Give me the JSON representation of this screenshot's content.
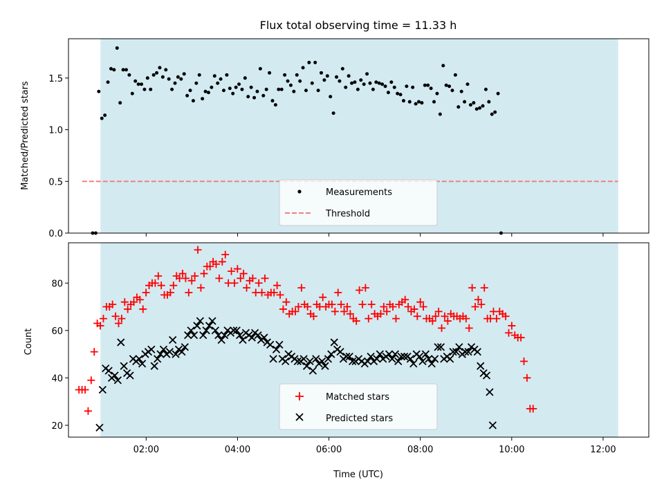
{
  "title": "Flux total observing time = 11.33 h",
  "colors": {
    "shade": "#d3eaf1",
    "measurement": "#000000",
    "threshold": "#f08080",
    "matched": "#ff0000",
    "predicted": "#000000"
  },
  "chart_data": [
    {
      "type": "scatter",
      "id": "ratio",
      "ylabel": "Matched/Predicted stars",
      "xlim": [
        0.3,
        13.0
      ],
      "ylim": [
        0.0,
        1.88
      ],
      "yticks": [
        0.0,
        0.5,
        1.0,
        1.5
      ],
      "ytick_labels": [
        "0.0",
        "0.5",
        "1.0",
        "1.5"
      ],
      "shaded_span": [
        1.0,
        12.33
      ],
      "threshold": 0.5,
      "threshold_span": [
        0.6,
        12.33
      ],
      "legend": {
        "placement": "lower-center",
        "entries": [
          "Measurements",
          "Threshold"
        ]
      },
      "x_start": 0.83,
      "x_step": 0.0667,
      "y": [
        0,
        0,
        1.37,
        1.11,
        1.14,
        1.46,
        1.59,
        1.58,
        1.79,
        1.26,
        1.58,
        1.58,
        1.53,
        1.35,
        1.47,
        1.44,
        1.44,
        1.39,
        1.5,
        1.39,
        1.53,
        1.55,
        1.6,
        1.51,
        1.58,
        1.49,
        1.39,
        1.45,
        1.51,
        1.49,
        1.54,
        1.33,
        1.38,
        1.28,
        1.45,
        1.53,
        1.3,
        1.37,
        1.36,
        1.41,
        1.52,
        1.45,
        1.49,
        1.38,
        1.53,
        1.4,
        1.35,
        1.41,
        1.44,
        1.39,
        1.5,
        1.32,
        1.41,
        1.31,
        1.37,
        1.59,
        1.33,
        1.39,
        1.55,
        1.28,
        1.24,
        1.39,
        1.39,
        1.53,
        1.47,
        1.43,
        1.37,
        1.53,
        1.47,
        1.6,
        1.38,
        1.65,
        1.45,
        1.65,
        1.38,
        1.55,
        1.48,
        1.52,
        1.32,
        1.16,
        1.51,
        1.47,
        1.59,
        1.41,
        1.52,
        1.45,
        1.46,
        1.39,
        1.48,
        1.44,
        1.54,
        1.45,
        1.39,
        1.46,
        1.45,
        1.44,
        1.42,
        1.36,
        1.46,
        1.41,
        1.35,
        1.34,
        1.28,
        1.42,
        1.27,
        1.41,
        1.25,
        1.27,
        1.26,
        1.43,
        1.43,
        1.4,
        1.27,
        1.35,
        1.15,
        1.62,
        1.43,
        1.42,
        1.38,
        1.53,
        1.22,
        1.37,
        1.27,
        1.44,
        1.24,
        1.26,
        1.2,
        1.21,
        1.23,
        1.39,
        1.27,
        1.15,
        1.17,
        1.35,
        0
      ]
    },
    {
      "type": "scatter",
      "id": "counts",
      "title": "",
      "ylabel": "Count",
      "xlabel": "Time (UTC)",
      "xlim": [
        0.3,
        13.0
      ],
      "ylim": [
        15,
        97
      ],
      "yticks": [
        20,
        40,
        60,
        80
      ],
      "ytick_labels": [
        "20",
        "40",
        "60",
        "80"
      ],
      "xticks": [
        2,
        4,
        6,
        8,
        10,
        12
      ],
      "xtick_labels": [
        "02:00",
        "04:00",
        "06:00",
        "08:00",
        "10:00",
        "12:00"
      ],
      "shaded_span": [
        1.0,
        12.33
      ],
      "legend": {
        "placement": "lower-center",
        "entries": [
          "Matched stars",
          "Predicted stars"
        ]
      },
      "series": [
        {
          "name": "Matched stars",
          "marker": "plus",
          "x_start": 0.53,
          "x_step": 0.0667,
          "y": [
            35,
            35,
            35,
            26,
            39,
            51,
            63,
            62,
            65,
            70,
            70,
            71,
            66,
            63,
            65,
            72,
            69,
            71,
            72,
            74,
            73,
            69,
            76,
            79,
            80,
            80,
            83,
            79,
            75,
            75,
            76,
            79,
            83,
            82,
            84,
            82,
            76,
            81,
            83,
            94,
            78,
            84,
            87,
            87,
            89,
            88,
            82,
            89,
            92,
            80,
            85,
            80,
            86,
            82,
            84,
            78,
            81,
            82,
            76,
            80,
            76,
            82,
            75,
            76,
            76,
            79,
            75,
            69,
            72,
            67,
            68,
            68,
            70,
            78,
            71,
            70,
            67,
            66,
            71,
            70,
            74,
            70,
            71,
            71,
            68,
            76,
            71,
            68,
            70,
            67,
            65,
            64,
            77,
            71,
            78,
            65,
            71,
            67,
            66,
            67,
            70,
            68,
            71,
            70,
            65,
            71,
            72,
            73,
            70,
            68,
            69,
            66,
            72,
            70,
            65,
            65,
            64,
            66,
            68,
            61,
            66,
            64,
            67,
            66,
            66,
            65,
            66,
            65,
            61,
            78,
            70,
            73,
            71,
            78,
            65,
            65,
            68,
            65,
            68,
            67,
            66,
            59,
            62,
            58,
            57,
            57,
            47,
            40,
            27,
            27
          ]
        },
        {
          "name": "Predicted stars",
          "marker": "x",
          "x_start": 0.98,
          "x_step": 0.0667,
          "y": [
            19,
            35,
            44,
            43,
            40,
            41,
            39,
            55,
            45,
            42,
            41,
            48,
            47,
            48,
            46,
            50,
            51,
            52,
            45,
            48,
            50,
            52,
            50,
            51,
            56,
            50,
            52,
            51,
            53,
            58,
            60,
            58,
            62,
            64,
            58,
            60,
            62,
            64,
            60,
            58,
            56,
            58,
            60,
            59,
            60,
            60,
            58,
            56,
            59,
            58,
            57,
            59,
            58,
            56,
            57,
            55,
            54,
            48,
            52,
            54,
            48,
            47,
            50,
            49,
            48,
            47,
            47,
            48,
            45,
            47,
            43,
            48,
            46,
            47,
            45,
            48,
            50,
            55,
            52,
            51,
            48,
            49,
            49,
            47,
            47,
            48,
            47,
            46,
            47,
            49,
            47,
            48,
            50,
            48,
            49,
            50,
            48,
            50,
            47,
            49,
            49,
            49,
            48,
            46,
            50,
            49,
            47,
            50,
            48,
            46,
            48,
            53,
            53,
            48,
            49,
            48,
            51,
            51,
            53,
            50,
            51,
            51,
            53,
            52,
            51,
            45,
            42,
            41,
            34,
            20
          ]
        }
      ]
    }
  ]
}
